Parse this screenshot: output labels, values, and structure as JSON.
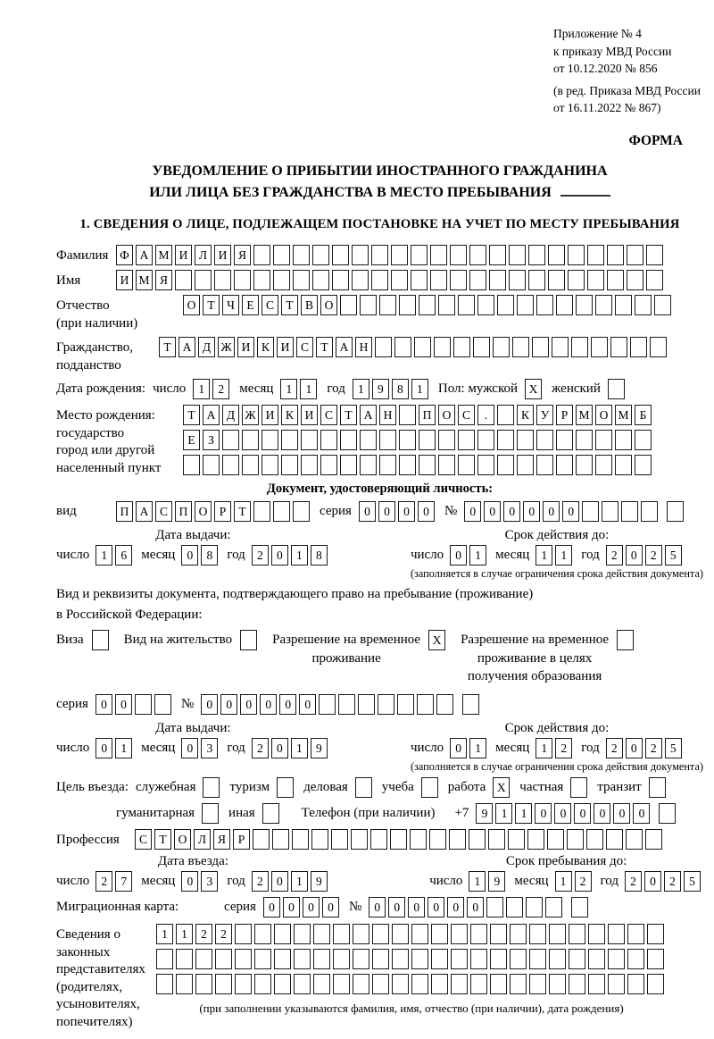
{
  "doc": {
    "appendix": [
      "Приложение № 4",
      "к приказу МВД России",
      "от 10.12.2020 № 856"
    ],
    "revision": [
      "(в ред. Приказа МВД России",
      "от 16.11.2022 № 867)"
    ],
    "form_label": "ФОРМА",
    "title1": "УВЕДОМЛЕНИЕ О ПРИБЫТИИ ИНОСТРАННОГО ГРАЖДАНИНА",
    "title2": "ИЛИ ЛИЦА БЕЗ ГРАЖДАНСТВА В МЕСТО ПРЕБЫВАНИЯ",
    "section1": "1. СВЕДЕНИЯ О ЛИЦЕ, ПОДЛЕЖАЩЕМ ПОСТАНОВКЕ НА УЧЕТ ПО МЕСТУ ПРЕБЫВАНИЯ"
  },
  "labels": {
    "day": "число",
    "month": "месяц",
    "year": "год",
    "seriya": "серия",
    "number": "№"
  },
  "surname": {
    "label": "Фамилия",
    "boxes": {
      "chars": "ФАМИЛИЯ",
      "total": 28
    }
  },
  "firstname": {
    "label": "Имя",
    "boxes": {
      "chars": "ИМЯ",
      "total": 28
    }
  },
  "patronymic": {
    "label1": "Отчество",
    "label2": "(при наличии)",
    "boxes": {
      "chars": "ОТЧЕСТВО",
      "total": 25
    }
  },
  "citizenship": {
    "label1": "Гражданство,",
    "label2": "подданство",
    "boxes": {
      "chars": "ТАДЖИКИСТАН",
      "total": 26
    }
  },
  "birth": {
    "label": "Дата рождения:",
    "day": {
      "chars": "12",
      "total": 2
    },
    "month": {
      "chars": "11",
      "total": 2
    },
    "year": {
      "chars": "1981",
      "total": 4
    },
    "sex_label": "Пол: мужской",
    "male_box": {
      "chars": "X",
      "total": 1
    },
    "female_label": "женский",
    "female_box": {
      "chars": "",
      "total": 1
    }
  },
  "birthplace": {
    "label_lines": [
      "Место рождения:",
      "государство",
      "город или другой",
      "населенный пункт"
    ],
    "row1": {
      "chars": "ТАДЖИКИСТАН ПОС. КУРМОМБ",
      "total": 24
    },
    "row2": {
      "chars": "ЕЗ",
      "total": 24
    },
    "row3": {
      "chars": "",
      "total": 24
    }
  },
  "iddoc": {
    "header": "Документ, удостоверяющий личность:",
    "vid_label": "вид",
    "vid": {
      "chars": "ПАСПОРТ",
      "total": 10
    },
    "seriya": {
      "chars": "0000",
      "total": 4
    },
    "number": {
      "chars": "000000",
      "total": 10,
      "tail": 1
    },
    "issue_title": "Дата выдачи:",
    "issue_day": {
      "chars": "16",
      "total": 2
    },
    "issue_month": {
      "chars": "08",
      "total": 2
    },
    "issue_year": {
      "chars": "2018",
      "total": 4
    },
    "expiry_title": "Срок действия до:",
    "expiry_day": {
      "chars": "01",
      "total": 2
    },
    "expiry_month": {
      "chars": "11",
      "total": 2
    },
    "expiry_year": {
      "chars": "2025",
      "total": 4
    },
    "expiry_note": "(заполняется в случае ограничения срока действия документа)"
  },
  "residence": {
    "intro1": "Вид и реквизиты документа, подтверждающего право на пребывание (проживание)",
    "intro2": "в Российской Федерации:",
    "visa_label": "Виза",
    "visa_box": {
      "chars": "",
      "total": 1
    },
    "permit_label": "Вид на жительство",
    "permit_box": {
      "chars": "",
      "total": 1
    },
    "rvp_label1": "Разрешение на временное",
    "rvp_label2": "проживание",
    "rvp_box": {
      "chars": "X",
      "total": 1
    },
    "rvp_edu_label1": "Разрешение на временное",
    "rvp_edu_label2": "проживание в целях",
    "rvp_edu_label3": "получения образования",
    "rvp_edu_box": {
      "chars": "",
      "total": 1
    },
    "seriya": {
      "chars": "00",
      "total": 4
    },
    "number": {
      "chars": "000000",
      "total": 13,
      "tail": 1
    },
    "issue_title": "Дата выдачи:",
    "issue_day": {
      "chars": "01",
      "total": 2
    },
    "issue_month": {
      "chars": "03",
      "total": 2
    },
    "issue_year": {
      "chars": "2019",
      "total": 4
    },
    "expiry_title": "Срок действия до:",
    "expiry_day": {
      "chars": "01",
      "total": 2
    },
    "expiry_month": {
      "chars": "12",
      "total": 2
    },
    "expiry_year": {
      "chars": "2025",
      "total": 4
    },
    "expiry_note": "(заполняется в случае ограничения срока действия документа)"
  },
  "purpose": {
    "label": "Цель въезда:",
    "options": [
      {
        "label": "служебная",
        "box": {
          "chars": "",
          "total": 1
        }
      },
      {
        "label": "туризм",
        "box": {
          "chars": "",
          "total": 1
        }
      },
      {
        "label": "деловая",
        "box": {
          "chars": "",
          "total": 1
        }
      },
      {
        "label": "учеба",
        "box": {
          "chars": "",
          "total": 1
        }
      },
      {
        "label": "работа",
        "box": {
          "chars": "X",
          "total": 1
        }
      },
      {
        "label": "частная",
        "box": {
          "chars": "",
          "total": 1
        }
      },
      {
        "label": "транзит",
        "box": {
          "chars": "",
          "total": 1
        }
      },
      {
        "label": "гуманитарная",
        "box": {
          "chars": "",
          "total": 1
        }
      },
      {
        "label": "иная",
        "box": {
          "chars": "",
          "total": 1
        }
      }
    ],
    "phone_label": "Телефон (при наличии)",
    "phone_prefix": "+7",
    "phone": {
      "chars": "911000000",
      "total": 9,
      "tail": 1
    }
  },
  "profession": {
    "label": "Профессия",
    "boxes": {
      "chars": "СТОЛЯР",
      "total": 27
    }
  },
  "entry": {
    "date_title": "Дата въезда:",
    "day": {
      "chars": "27",
      "total": 2
    },
    "month": {
      "chars": "03",
      "total": 2
    },
    "year": {
      "chars": "2019",
      "total": 4
    },
    "stay_title": "Срок пребывания до:",
    "stay_day": {
      "chars": "19",
      "total": 2
    },
    "stay_month": {
      "chars": "12",
      "total": 2
    },
    "stay_year": {
      "chars": "2025",
      "total": 4
    }
  },
  "migration_card": {
    "label": "Миграционная карта:",
    "seriya": {
      "chars": "0000",
      "total": 4
    },
    "number": {
      "chars": "000000",
      "total": 10,
      "tail": 1
    }
  },
  "legal_reps": {
    "label_lines": [
      "Сведения о",
      "законных",
      "представителях",
      "(родителях,",
      "усыновителях,",
      "попечителях)"
    ],
    "row1": {
      "chars": "1122",
      "total": 26
    },
    "row2": {
      "chars": "",
      "total": 26
    },
    "row3": {
      "chars": "",
      "total": 26
    },
    "note": "(при заполнении указываются фамилия, имя, отчество (при наличии), дата рождения)"
  }
}
